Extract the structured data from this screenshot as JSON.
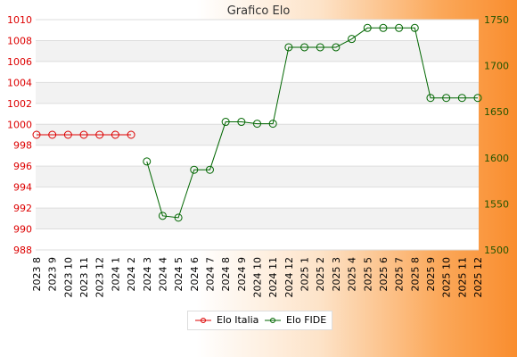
{
  "chart_data": {
    "type": "line",
    "title": "Grafico Elo",
    "categories": [
      "2023 8",
      "2023 9",
      "2023 10",
      "2023 11",
      "2023 12",
      "2024 1",
      "2024 2",
      "2024 3",
      "2024 4",
      "2024 5",
      "2024 6",
      "2024 7",
      "2024 8",
      "2024 9",
      "2024 10",
      "2024 11",
      "2024 12",
      "2025 1",
      "2025 2",
      "2025 3",
      "2025 4",
      "2025 5",
      "2025 6",
      "2025 7",
      "2025 8",
      "2025 9",
      "2025 10",
      "2025 11",
      "2025 12"
    ],
    "y_left": {
      "ylim": [
        988,
        1010
      ],
      "ticks": [
        988,
        990,
        992,
        994,
        996,
        998,
        1000,
        1002,
        1004,
        1006,
        1008,
        1010
      ],
      "color": "#dd0000"
    },
    "y_right": {
      "ylim": [
        1500,
        1750
      ],
      "ticks": [
        1500,
        1550,
        1600,
        1650,
        1700,
        1750
      ],
      "color": "#225500"
    },
    "grid": true,
    "legend_position": "bottom",
    "series": [
      {
        "name": "Elo Italia",
        "axis": "left",
        "color": "#dd0000",
        "values": [
          999,
          999,
          999,
          999,
          999,
          999,
          999,
          null,
          null,
          null,
          null,
          null,
          null,
          null,
          null,
          null,
          null,
          null,
          null,
          null,
          null,
          null,
          null,
          null,
          null,
          null,
          null,
          null,
          null
        ]
      },
      {
        "name": "Elo FIDE",
        "axis": "right",
        "color": "#006600",
        "values": [
          null,
          null,
          null,
          null,
          null,
          null,
          null,
          1596,
          1537,
          1535,
          1587,
          1587,
          1639,
          1639,
          1637,
          1637,
          1720,
          1720,
          1720,
          1720,
          1729,
          1741,
          1741,
          1741,
          1741,
          1665,
          1665,
          1665,
          1665
        ]
      }
    ]
  }
}
